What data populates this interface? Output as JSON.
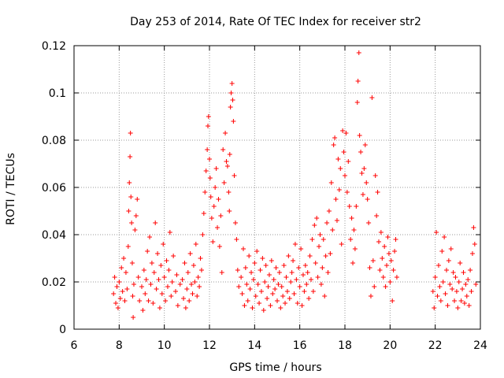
{
  "chart_data": {
    "type": "scatter",
    "title": "Day 253 of 2014, Rate Of TEC Index for receiver str2",
    "xlabel": "GPS time / hours",
    "ylabel": "ROTI / TECUs",
    "xlim": [
      6,
      24
    ],
    "ylim": [
      0,
      0.12
    ],
    "x_ticks": [
      6,
      8,
      10,
      12,
      14,
      16,
      18,
      20,
      22,
      24
    ],
    "x_tick_labels": [
      "6",
      "8",
      "10",
      "12",
      "14",
      "16",
      "18",
      "20",
      "22",
      "24"
    ],
    "y_ticks": [
      0,
      0.02,
      0.04,
      0.06,
      0.08,
      0.1,
      0.12
    ],
    "y_tick_labels": [
      "0",
      "0.02",
      "0.04",
      "0.06",
      "0.08",
      "0.1",
      "0.12"
    ],
    "grid": true,
    "marker": "+",
    "marker_color": "#ff0000",
    "series": [
      {
        "name": "ROTI",
        "points": [
          [
            7.75,
            0.015
          ],
          [
            7.8,
            0.022
          ],
          [
            7.85,
            0.011
          ],
          [
            7.9,
            0.018
          ],
          [
            7.95,
            0.009
          ],
          [
            8.0,
            0.02
          ],
          [
            8.05,
            0.013
          ],
          [
            8.1,
            0.026
          ],
          [
            8.15,
            0.016
          ],
          [
            8.2,
            0.03
          ],
          [
            8.25,
            0.012
          ],
          [
            8.3,
            0.024
          ],
          [
            8.35,
            0.017
          ],
          [
            8.4,
            0.035
          ],
          [
            8.42,
            0.05
          ],
          [
            8.45,
            0.062
          ],
          [
            8.48,
            0.073
          ],
          [
            8.5,
            0.083
          ],
          [
            8.52,
            0.056
          ],
          [
            8.55,
            0.045
          ],
          [
            8.58,
            0.028
          ],
          [
            8.6,
            0.014
          ],
          [
            8.62,
            0.005
          ],
          [
            8.65,
            0.019
          ],
          [
            8.7,
            0.042
          ],
          [
            8.75,
            0.048
          ],
          [
            8.8,
            0.055
          ],
          [
            8.85,
            0.022
          ],
          [
            8.9,
            0.012
          ],
          [
            9.0,
            0.018
          ],
          [
            9.05,
            0.008
          ],
          [
            9.1,
            0.025
          ],
          [
            9.15,
            0.015
          ],
          [
            9.2,
            0.021
          ],
          [
            9.25,
            0.033
          ],
          [
            9.3,
            0.012
          ],
          [
            9.35,
            0.039
          ],
          [
            9.4,
            0.019
          ],
          [
            9.45,
            0.028
          ],
          [
            9.5,
            0.011
          ],
          [
            9.55,
            0.024
          ],
          [
            9.6,
            0.045
          ],
          [
            9.65,
            0.017
          ],
          [
            9.7,
            0.032
          ],
          [
            9.75,
            0.021
          ],
          [
            9.8,
            0.009
          ],
          [
            9.85,
            0.027
          ],
          [
            9.9,
            0.015
          ],
          [
            9.95,
            0.036
          ],
          [
            10.0,
            0.022
          ],
          [
            10.05,
            0.012
          ],
          [
            10.1,
            0.029
          ],
          [
            10.15,
            0.018
          ],
          [
            10.2,
            0.025
          ],
          [
            10.25,
            0.041
          ],
          [
            10.3,
            0.014
          ],
          [
            10.35,
            0.02
          ],
          [
            10.4,
            0.031
          ],
          [
            10.5,
            0.016
          ],
          [
            10.55,
            0.023
          ],
          [
            10.6,
            0.01
          ],
          [
            10.7,
            0.019
          ],
          [
            10.8,
            0.021
          ],
          [
            10.85,
            0.013
          ],
          [
            10.9,
            0.028
          ],
          [
            10.95,
            0.009
          ],
          [
            11.0,
            0.017
          ],
          [
            11.05,
            0.024
          ],
          [
            11.1,
            0.012
          ],
          [
            11.15,
            0.032
          ],
          [
            11.2,
            0.019
          ],
          [
            11.25,
            0.015
          ],
          [
            11.3,
            0.027
          ],
          [
            11.35,
            0.02
          ],
          [
            11.4,
            0.036
          ],
          [
            11.45,
            0.014
          ],
          [
            11.5,
            0.022
          ],
          [
            11.55,
            0.018
          ],
          [
            11.6,
            0.03
          ],
          [
            11.65,
            0.025
          ],
          [
            11.7,
            0.04
          ],
          [
            11.75,
            0.049
          ],
          [
            11.8,
            0.058
          ],
          [
            11.85,
            0.067
          ],
          [
            11.9,
            0.076
          ],
          [
            11.93,
            0.086
          ],
          [
            11.96,
            0.09
          ],
          [
            12.0,
            0.072
          ],
          [
            12.03,
            0.064
          ],
          [
            12.06,
            0.056
          ],
          [
            12.1,
            0.047
          ],
          [
            12.15,
            0.037
          ],
          [
            12.2,
            0.052
          ],
          [
            12.25,
            0.06
          ],
          [
            12.3,
            0.068
          ],
          [
            12.35,
            0.043
          ],
          [
            12.4,
            0.055
          ],
          [
            12.45,
            0.035
          ],
          [
            12.5,
            0.048
          ],
          [
            12.55,
            0.024
          ],
          [
            12.6,
            0.076
          ],
          [
            12.65,
            0.062
          ],
          [
            12.7,
            0.083
          ],
          [
            12.75,
            0.071
          ],
          [
            12.8,
            0.069
          ],
          [
            12.85,
            0.058
          ],
          [
            12.88,
            0.05
          ],
          [
            12.9,
            0.074
          ],
          [
            12.93,
            0.094
          ],
          [
            12.96,
            0.1
          ],
          [
            13.0,
            0.104
          ],
          [
            13.03,
            0.097
          ],
          [
            13.06,
            0.088
          ],
          [
            13.1,
            0.065
          ],
          [
            13.15,
            0.045
          ],
          [
            13.2,
            0.038
          ],
          [
            13.25,
            0.025
          ],
          [
            13.3,
            0.018
          ],
          [
            13.4,
            0.022
          ],
          [
            13.45,
            0.015
          ],
          [
            13.5,
            0.034
          ],
          [
            13.55,
            0.01
          ],
          [
            13.6,
            0.026
          ],
          [
            13.65,
            0.019
          ],
          [
            13.7,
            0.012
          ],
          [
            13.75,
            0.031
          ],
          [
            13.8,
            0.017
          ],
          [
            13.85,
            0.024
          ],
          [
            13.9,
            0.009
          ],
          [
            13.95,
            0.021
          ],
          [
            14.0,
            0.028
          ],
          [
            14.05,
            0.014
          ],
          [
            14.1,
            0.033
          ],
          [
            14.15,
            0.019
          ],
          [
            14.2,
            0.011
          ],
          [
            14.25,
            0.025
          ],
          [
            14.3,
            0.016
          ],
          [
            14.35,
            0.03
          ],
          [
            14.4,
            0.008
          ],
          [
            14.45,
            0.02
          ],
          [
            14.5,
            0.027
          ],
          [
            14.55,
            0.013
          ],
          [
            14.6,
            0.018
          ],
          [
            14.65,
            0.023
          ],
          [
            14.7,
            0.01
          ],
          [
            14.75,
            0.029
          ],
          [
            14.8,
            0.015
          ],
          [
            14.85,
            0.021
          ],
          [
            14.9,
            0.017
          ],
          [
            14.95,
            0.026
          ],
          [
            15.0,
            0.012
          ],
          [
            15.05,
            0.019
          ],
          [
            15.1,
            0.024
          ],
          [
            15.15,
            0.009
          ],
          [
            15.2,
            0.018
          ],
          [
            15.25,
            0.014
          ],
          [
            15.3,
            0.027
          ],
          [
            15.35,
            0.011
          ],
          [
            15.4,
            0.022
          ],
          [
            15.45,
            0.016
          ],
          [
            15.5,
            0.031
          ],
          [
            15.55,
            0.013
          ],
          [
            15.6,
            0.02
          ],
          [
            15.65,
            0.024
          ],
          [
            15.7,
            0.029
          ],
          [
            15.75,
            0.015
          ],
          [
            15.8,
            0.036
          ],
          [
            15.85,
            0.021
          ],
          [
            15.9,
            0.011
          ],
          [
            15.95,
            0.026
          ],
          [
            16.0,
            0.018
          ],
          [
            16.05,
            0.034
          ],
          [
            16.1,
            0.01
          ],
          [
            16.15,
            0.023
          ],
          [
            16.2,
            0.016
          ],
          [
            16.25,
            0.027
          ],
          [
            16.3,
            0.019
          ],
          [
            16.35,
            0.024
          ],
          [
            16.4,
            0.013
          ],
          [
            16.45,
            0.031
          ],
          [
            16.5,
            0.021
          ],
          [
            16.55,
            0.038
          ],
          [
            16.6,
            0.016
          ],
          [
            16.65,
            0.044
          ],
          [
            16.7,
            0.028
          ],
          [
            16.75,
            0.047
          ],
          [
            16.8,
            0.022
          ],
          [
            16.85,
            0.035
          ],
          [
            16.9,
            0.04
          ],
          [
            16.95,
            0.019
          ],
          [
            17.0,
            0.026
          ],
          [
            17.05,
            0.038
          ],
          [
            17.1,
            0.014
          ],
          [
            17.15,
            0.031
          ],
          [
            17.2,
            0.045
          ],
          [
            17.25,
            0.024
          ],
          [
            17.3,
            0.05
          ],
          [
            17.35,
            0.032
          ],
          [
            17.4,
            0.062
          ],
          [
            17.45,
            0.042
          ],
          [
            17.5,
            0.078
          ],
          [
            17.55,
            0.081
          ],
          [
            17.6,
            0.055
          ],
          [
            17.65,
            0.046
          ],
          [
            17.7,
            0.072
          ],
          [
            17.75,
            0.059
          ],
          [
            17.8,
            0.068
          ],
          [
            17.85,
            0.036
          ],
          [
            17.9,
            0.084
          ],
          [
            17.95,
            0.075
          ],
          [
            18.0,
            0.065
          ],
          [
            18.05,
            0.083
          ],
          [
            18.1,
            0.058
          ],
          [
            18.15,
            0.071
          ],
          [
            18.2,
            0.052
          ],
          [
            18.25,
            0.038
          ],
          [
            18.3,
            0.047
          ],
          [
            18.35,
            0.028
          ],
          [
            18.4,
            0.042
          ],
          [
            18.45,
            0.034
          ],
          [
            18.5,
            0.052
          ],
          [
            18.55,
            0.096
          ],
          [
            18.58,
            0.105
          ],
          [
            18.62,
            0.117
          ],
          [
            18.65,
            0.082
          ],
          [
            18.7,
            0.075
          ],
          [
            18.75,
            0.066
          ],
          [
            18.8,
            0.057
          ],
          [
            18.85,
            0.068
          ],
          [
            18.9,
            0.078
          ],
          [
            18.95,
            0.062
          ],
          [
            19.0,
            0.055
          ],
          [
            19.05,
            0.045
          ],
          [
            19.1,
            0.026
          ],
          [
            19.15,
            0.014
          ],
          [
            19.2,
            0.098
          ],
          [
            19.25,
            0.029
          ],
          [
            19.3,
            0.018
          ],
          [
            19.35,
            0.065
          ],
          [
            19.4,
            0.048
          ],
          [
            19.45,
            0.058
          ],
          [
            19.5,
            0.037
          ],
          [
            19.55,
            0.025
          ],
          [
            19.6,
            0.041
          ],
          [
            19.65,
            0.03
          ],
          [
            19.7,
            0.022
          ],
          [
            19.75,
            0.035
          ],
          [
            19.8,
            0.018
          ],
          [
            19.85,
            0.027
          ],
          [
            19.9,
            0.039
          ],
          [
            19.95,
            0.032
          ],
          [
            20.0,
            0.02
          ],
          [
            20.05,
            0.029
          ],
          [
            20.1,
            0.012
          ],
          [
            20.15,
            0.025
          ],
          [
            20.2,
            0.033
          ],
          [
            20.25,
            0.038
          ],
          [
            20.3,
            0.022
          ],
          [
            21.9,
            0.016
          ],
          [
            21.95,
            0.009
          ],
          [
            22.0,
            0.022
          ],
          [
            22.05,
            0.041
          ],
          [
            22.1,
            0.014
          ],
          [
            22.15,
            0.027
          ],
          [
            22.2,
            0.018
          ],
          [
            22.25,
            0.012
          ],
          [
            22.3,
            0.033
          ],
          [
            22.35,
            0.02
          ],
          [
            22.4,
            0.039
          ],
          [
            22.45,
            0.015
          ],
          [
            22.5,
            0.025
          ],
          [
            22.55,
            0.01
          ],
          [
            22.6,
            0.029
          ],
          [
            22.65,
            0.019
          ],
          [
            22.7,
            0.034
          ],
          [
            22.75,
            0.017
          ],
          [
            22.8,
            0.024
          ],
          [
            22.85,
            0.012
          ],
          [
            22.9,
            0.022
          ],
          [
            22.95,
            0.016
          ],
          [
            23.0,
            0.009
          ],
          [
            23.05,
            0.02
          ],
          [
            23.1,
            0.028
          ],
          [
            23.15,
            0.012
          ],
          [
            23.2,
            0.017
          ],
          [
            23.25,
            0.024
          ],
          [
            23.3,
            0.011
          ],
          [
            23.35,
            0.019
          ],
          [
            23.4,
            0.014
          ],
          [
            23.45,
            0.021
          ],
          [
            23.5,
            0.01
          ],
          [
            23.55,
            0.025
          ],
          [
            23.6,
            0.016
          ],
          [
            23.65,
            0.032
          ],
          [
            23.7,
            0.043
          ],
          [
            23.75,
            0.036
          ],
          [
            23.8,
            0.019
          ]
        ]
      }
    ]
  }
}
